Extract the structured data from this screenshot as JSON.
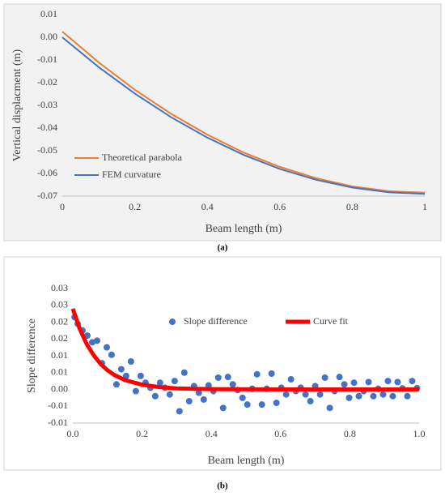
{
  "chart_data": [
    {
      "type": "line",
      "caption": "(a)",
      "xlabel": "Beam length (m)",
      "ylabel": "Vertical displacment (m)",
      "xlim": [
        0,
        1
      ],
      "xticks": [
        0,
        0.2,
        0.4,
        0.6,
        0.8,
        1
      ],
      "ylim": [
        -0.07,
        0.01
      ],
      "yticks": [
        0.01,
        {
          "value": 0,
          "label": "0.00"
        },
        -0.01,
        -0.02,
        -0.03,
        -0.04,
        -0.05,
        -0.06,
        -0.07
      ],
      "grid": false,
      "legend": "lower left",
      "background": "#f2f2f2",
      "series": [
        {
          "name": "Theoretical parabola",
          "type": "line",
          "color": "#ed7d31",
          "x": [
            0,
            0.1,
            0.2,
            0.3,
            0.4,
            0.5,
            0.6,
            0.7,
            0.8,
            0.9,
            1
          ],
          "values": [
            0.0025,
            -0.011,
            -0.0231,
            -0.0337,
            -0.0429,
            -0.0508,
            -0.0571,
            -0.0621,
            -0.0657,
            -0.0678,
            -0.0685
          ]
        },
        {
          "name": "FEM curvature",
          "type": "line",
          "color": "#4472c4",
          "x": [
            0,
            0.1,
            0.2,
            0.3,
            0.4,
            0.5,
            0.6,
            0.7,
            0.8,
            0.9,
            1
          ],
          "values": [
            0,
            -0.0131,
            -0.0248,
            -0.0352,
            -0.0442,
            -0.0518,
            -0.058,
            -0.0628,
            -0.0662,
            -0.0683,
            -0.069
          ]
        }
      ]
    },
    {
      "type": "scatter",
      "caption": "(b)",
      "xlabel": "Beam length (m)",
      "ylabel": "Slope difference",
      "xlim": [
        0,
        1
      ],
      "xticks": [
        {
          "value": 0,
          "label": "0.0"
        },
        0.2,
        0.4,
        0.6,
        0.8,
        {
          "value": 1,
          "label": "1.0"
        }
      ],
      "ylim": [
        -0.01,
        0.03
      ],
      "yticks": [
        0.03,
        {
          "value": 0.025,
          "label": "0.03"
        },
        0.02,
        {
          "value": 0.015,
          "label": "0.02"
        },
        0.01,
        {
          "value": 0.005,
          "label": "0.01"
        },
        {
          "value": 0,
          "label": "0.00"
        },
        {
          "value": -0.005,
          "label": "-0.01"
        },
        -0.01
      ],
      "grid": false,
      "legend": "top",
      "background": "#ffffff",
      "series": [
        {
          "name": "Slope difference",
          "type": "scatter",
          "color": "#4472c4",
          "x": [
            0.005,
            0.014,
            0.028,
            0.042,
            0.056,
            0.07,
            0.084,
            0.098,
            0.112,
            0.126,
            0.14,
            0.154,
            0.168,
            0.182,
            0.196,
            0.21,
            0.224,
            0.238,
            0.252,
            0.266,
            0.28,
            0.294,
            0.308,
            0.322,
            0.336,
            0.35,
            0.364,
            0.378,
            0.392,
            0.406,
            0.42,
            0.434,
            0.448,
            0.462,
            0.476,
            0.49,
            0.504,
            0.518,
            0.532,
            0.546,
            0.56,
            0.574,
            0.588,
            0.602,
            0.616,
            0.63,
            0.644,
            0.658,
            0.672,
            0.686,
            0.7,
            0.714,
            0.728,
            0.742,
            0.756,
            0.77,
            0.784,
            0.798,
            0.812,
            0.826,
            0.84,
            0.854,
            0.868,
            0.882,
            0.896,
            0.91,
            0.924,
            0.938,
            0.952,
            0.966,
            0.98,
            0.994
          ],
          "values": [
            0.0215,
            0.0195,
            0.0175,
            0.016,
            0.014,
            0.0145,
            0.0078,
            0.0125,
            0.0103,
            0.0015,
            0.006,
            0.004,
            0.0083,
            -0.0005,
            0.004,
            0.002,
            0.0005,
            -0.002,
            0.002,
            0.0005,
            -0.0015,
            0.0025,
            -0.0065,
            0.005,
            -0.0035,
            0.001,
            -0.001,
            -0.003,
            0.0012,
            -0.0005,
            0.0035,
            -0.0055,
            0.0037,
            0.0015,
            -0.0002,
            -0.0025,
            -0.0045,
            0.0002,
            0.0045,
            -0.0045,
            0.0002,
            0.0047,
            -0.004,
            0.0005,
            -0.0015,
            0.003,
            -0.0005,
            0.0005,
            -0.0015,
            -0.0035,
            0.001,
            -0.0015,
            0.0035,
            -0.0055,
            -0.0005,
            0.0037,
            0.0015,
            -0.0025,
            0.002,
            -0.002,
            -0.0005,
            0.0022,
            -0.002,
            0.0002,
            -0.0015,
            0.0025,
            -0.002,
            0.0022,
            0.0003,
            -0.002,
            0.0025,
            0.0004
          ]
        },
        {
          "name": "Curve fit",
          "type": "line",
          "color": "#ff0000",
          "x": [
            0,
            0.02,
            0.04,
            0.06,
            0.08,
            0.1,
            0.12,
            0.15,
            0.2,
            0.25,
            0.3,
            0.4,
            0.6,
            0.8,
            1
          ],
          "values": [
            0.024,
            0.018,
            0.0135,
            0.0102,
            0.0076,
            0.0057,
            0.0043,
            0.0028,
            0.0014,
            0.0007,
            0.0003,
            0.0001,
            0,
            0,
            0
          ]
        }
      ]
    }
  ]
}
